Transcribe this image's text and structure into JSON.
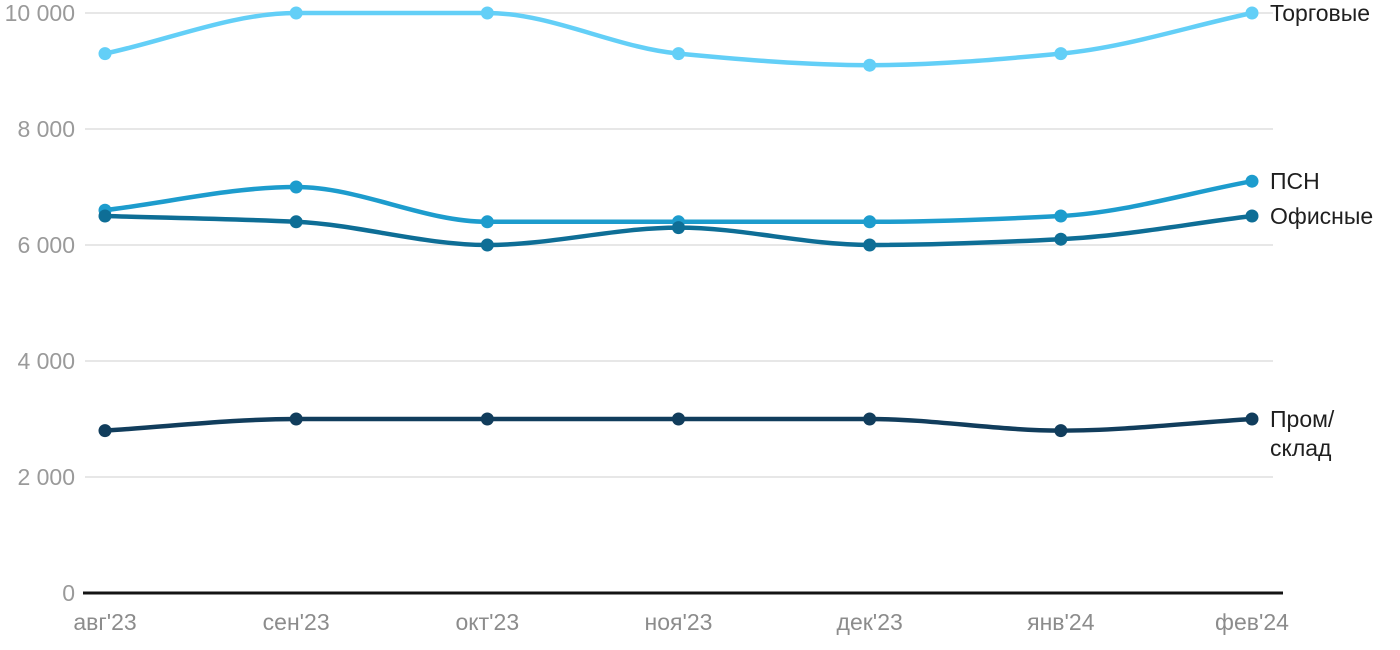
{
  "chart_data": {
    "type": "line",
    "title": "",
    "xlabel": "",
    "ylabel": "",
    "categories": [
      "авг'23",
      "сен'23",
      "окт'23",
      "ноя'23",
      "дек'23",
      "янв'24",
      "фев'24"
    ],
    "y_axis": {
      "ylim": [
        0,
        10225
      ],
      "grid": true,
      "ticks": [
        {
          "value": 0,
          "label": "0"
        },
        {
          "value": 2000,
          "label": "2 000"
        },
        {
          "value": 4000,
          "label": "4 000"
        },
        {
          "value": 6000,
          "label": "6 000"
        },
        {
          "value": 8000,
          "label": "8 000"
        },
        {
          "value": 10000,
          "label": "10 000"
        }
      ]
    },
    "legend_position": "right-inline-labels",
    "series": [
      {
        "name": "Торговые",
        "key": "torgovye",
        "label_lines": [
          "Торговые"
        ],
        "color": "#63cff7",
        "values": [
          9300,
          10000,
          10000,
          9300,
          9100,
          9300,
          10000
        ]
      },
      {
        "name": "ПСН",
        "key": "psn",
        "label_lines": [
          "ПСН"
        ],
        "color": "#1d9ccd",
        "values": [
          6600,
          7000,
          6400,
          6400,
          6400,
          6500,
          7100
        ]
      },
      {
        "name": "Офисные",
        "key": "ofisnye",
        "label_lines": [
          "Офисные"
        ],
        "color": "#0e6e96",
        "values": [
          6500,
          6400,
          6000,
          6300,
          6000,
          6100,
          6500
        ]
      },
      {
        "name": "Пром/склад",
        "key": "prom-sklad",
        "label_lines": [
          "Пром/",
          "склад"
        ],
        "color": "#113d5c",
        "values": [
          2800,
          3000,
          3000,
          3000,
          3000,
          2800,
          3000
        ]
      }
    ],
    "colors": {
      "background": "#ffffff",
      "grid": "#e7e7e7",
      "axis": "#141414",
      "y_tick_text": "#9a9a9a",
      "x_tick_text": "#8c8c8c",
      "series_label_text": "#1f1f1f"
    }
  }
}
